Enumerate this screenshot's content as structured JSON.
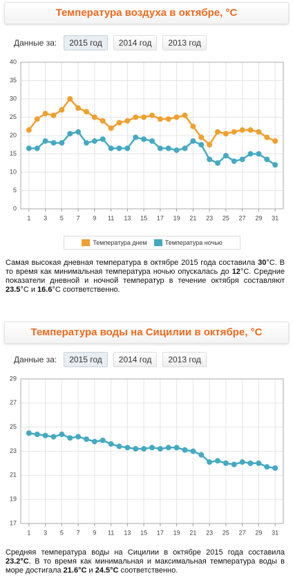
{
  "chart_data": [
    {
      "type": "line",
      "title": "Температура воздуха в октябре, °C",
      "x": [
        1,
        2,
        3,
        4,
        5,
        6,
        7,
        8,
        9,
        10,
        11,
        12,
        13,
        14,
        15,
        16,
        17,
        18,
        19,
        20,
        21,
        22,
        23,
        24,
        25,
        26,
        27,
        28,
        29,
        30,
        31
      ],
      "xlim": [
        0,
        32
      ],
      "xticks": [
        1,
        3,
        5,
        7,
        9,
        11,
        13,
        15,
        17,
        19,
        21,
        23,
        25,
        27,
        29,
        31
      ],
      "ylim": [
        0,
        40
      ],
      "yticks": [
        0,
        5,
        10,
        15,
        20,
        25,
        30,
        35,
        40
      ],
      "grid": true,
      "series": [
        {
          "name": "Температура днем",
          "color": "#f0a030",
          "values": [
            21.5,
            24.5,
            26,
            25.5,
            27,
            30,
            27.5,
            26.5,
            25,
            24,
            22,
            23.5,
            24,
            25,
            25,
            25.5,
            24.5,
            24.5,
            25,
            25.5,
            22.5,
            19.5,
            17.5,
            21,
            20.5,
            21,
            21.5,
            21.5,
            21,
            19.5,
            18.5
          ]
        },
        {
          "name": "Температура ночью",
          "color": "#45a9c2",
          "values": [
            16.5,
            16.5,
            18.5,
            18,
            18,
            20.5,
            21,
            18,
            18.5,
            19,
            16.5,
            16.5,
            16.5,
            19.5,
            19,
            18.5,
            16.5,
            16.5,
            16,
            16.5,
            18.5,
            17.5,
            13.5,
            12.5,
            14.5,
            13,
            13.5,
            15,
            15,
            13.5,
            12
          ]
        }
      ]
    },
    {
      "type": "line",
      "title": "Температура воды на Сицилии в октябре, °C",
      "x": [
        1,
        2,
        3,
        4,
        5,
        6,
        7,
        8,
        9,
        10,
        11,
        12,
        13,
        14,
        15,
        16,
        17,
        18,
        19,
        20,
        21,
        22,
        23,
        24,
        25,
        26,
        27,
        28,
        29,
        30,
        31
      ],
      "xlim": [
        0,
        32
      ],
      "xticks": [
        1,
        3,
        5,
        7,
        9,
        11,
        13,
        15,
        17,
        19,
        21,
        23,
        25,
        27,
        29,
        31
      ],
      "ylim": [
        17,
        29
      ],
      "yticks": [
        17,
        19,
        21,
        23,
        25,
        27,
        29
      ],
      "grid": true,
      "color": "#45a9c2",
      "values": [
        24.5,
        24.4,
        24.3,
        24.2,
        24.4,
        24.1,
        24.2,
        24.0,
        23.8,
        23.9,
        23.6,
        23.4,
        23.3,
        23.2,
        23.2,
        23.3,
        23.2,
        23.3,
        23.3,
        23.1,
        23.0,
        22.7,
        22.1,
        22.2,
        22.0,
        21.9,
        22.1,
        22.0,
        22.0,
        21.7,
        21.6
      ]
    }
  ],
  "sections": [
    {
      "data_label": "Данные за:",
      "tabs": [
        "2015 год",
        "2014 год",
        "2013 год"
      ],
      "selected": 0,
      "paragraph": [
        {
          "text": "Самая высокая дневная температура в октябре 2015 года составила ",
          "bold": false
        },
        {
          "text": "30",
          "bold": true
        },
        {
          "text": "°C. В то время как минимальная температура ночью опускалась до ",
          "bold": false
        },
        {
          "text": "12",
          "bold": true
        },
        {
          "text": "°C. Средние показатели дневной и ночной температур в течение октября составляют ",
          "bold": false
        },
        {
          "text": "23.5",
          "bold": true
        },
        {
          "text": "°C и ",
          "bold": false
        },
        {
          "text": "16.6",
          "bold": true
        },
        {
          "text": "°C соответственно.",
          "bold": false
        }
      ]
    },
    {
      "data_label": "Данные за:",
      "tabs": [
        "2015 год",
        "2014 год",
        "2013 год"
      ],
      "selected": 0,
      "paragraph": [
        {
          "text": "Средняя температура воды на Сицилии в октябре 2015 года составила ",
          "bold": false
        },
        {
          "text": "23.2°C",
          "bold": true
        },
        {
          "text": ". В то время как минимальная и максимальная температура воды в море достигала ",
          "bold": false
        },
        {
          "text": "21.6°C",
          "bold": true
        },
        {
          "text": " и ",
          "bold": false
        },
        {
          "text": "24.5°C",
          "bold": true
        },
        {
          "text": " соответственно.",
          "bold": false
        }
      ]
    }
  ]
}
